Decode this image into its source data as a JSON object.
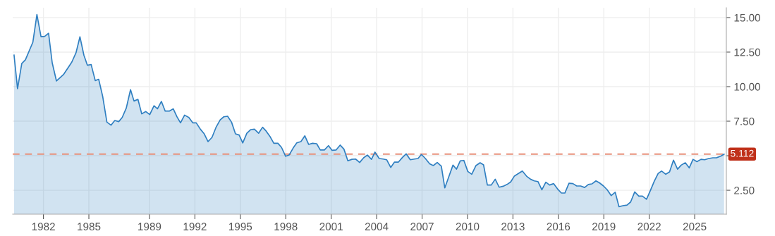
{
  "chart_data": {
    "type": "area",
    "x": [
      1980.06,
      1980.29,
      1980.57,
      1980.81,
      1981.3,
      1981.57,
      1981.84,
      1982.08,
      1982.34,
      1982.58,
      1982.86,
      1983.32,
      1983.87,
      1984.15,
      1984.41,
      1984.67,
      1984.9,
      1985.15,
      1985.42,
      1985.65,
      1985.91,
      1986.19,
      1986.46,
      1986.71,
      1986.97,
      1987.2,
      1987.47,
      1987.75,
      1987.98,
      1988.24,
      1988.49,
      1988.76,
      1989.02,
      1989.3,
      1989.53,
      1989.79,
      1990.04,
      1990.31,
      1990.57,
      1990.82,
      1991.05,
      1991.32,
      1991.6,
      1991.86,
      1992.09,
      1992.36,
      1992.6,
      1992.87,
      1993.13,
      1993.41,
      1993.67,
      1993.91,
      1994.16,
      1994.42,
      1994.68,
      1994.92,
      1995.16,
      1995.43,
      1995.69,
      1995.93,
      1996.21,
      1996.47,
      1996.7,
      1996.95,
      1997.21,
      1997.48,
      1997.72,
      1997.99,
      1998.22,
      1998.49,
      1998.73,
      1999.0,
      1999.26,
      1999.51,
      1999.77,
      2000.04,
      2000.28,
      2000.55,
      2000.82,
      2001.06,
      2001.33,
      2001.59,
      2001.84,
      2002.1,
      2002.37,
      2002.61,
      2002.88,
      2003.14,
      2003.39,
      2003.66,
      2003.89,
      2004.17,
      2004.43,
      2004.66,
      2004.93,
      2005.18,
      2005.44,
      2005.71,
      2005.95,
      2006.22,
      2006.5,
      2006.73,
      2006.96,
      2007.22,
      2007.5,
      2007.74,
      2008.0,
      2008.27,
      2008.5,
      2008.78,
      2009.04,
      2009.27,
      2009.52,
      2009.76,
      2010.02,
      2010.28,
      2010.56,
      2010.83,
      2011.06,
      2011.31,
      2011.57,
      2011.83,
      2012.09,
      2012.35,
      2012.61,
      2012.85,
      2013.09,
      2013.62,
      2013.9,
      2014.16,
      2014.41,
      2014.65,
      2014.91,
      2015.17,
      2015.42,
      2015.69,
      2015.95,
      2016.2,
      2016.43,
      2016.7,
      2016.96,
      2017.21,
      2017.47,
      2017.73,
      2017.98,
      2018.21,
      2018.48,
      2018.71,
      2018.98,
      2019.22,
      2019.49,
      2019.75,
      2020.0,
      2020.26,
      2020.53,
      2020.77,
      2021.04,
      2021.31,
      2021.55,
      2021.82,
      2022.08,
      2022.33,
      2022.59,
      2022.82,
      2023.09,
      2023.34,
      2023.6,
      2023.87,
      2024.11,
      2024.38,
      2024.64,
      2024.89,
      2025.15,
      2025.42,
      2025.66,
      2025.93,
      2026.2,
      2026.44,
      2026.71,
      2026.94
    ],
    "series": [
      {
        "color": "#2f7fc1",
        "values": [
          12.28,
          9.85,
          11.68,
          11.94,
          13.21,
          15.22,
          13.61,
          13.64,
          13.86,
          11.72,
          10.41,
          10.87,
          11.77,
          12.45,
          13.61,
          12.28,
          11.55,
          11.6,
          10.44,
          10.53,
          9.3,
          7.43,
          7.21,
          7.55,
          7.47,
          7.77,
          8.45,
          9.78,
          8.96,
          9.08,
          8.03,
          8.2,
          7.98,
          8.62,
          8.4,
          8.93,
          8.23,
          8.23,
          8.4,
          7.81,
          7.38,
          7.94,
          7.77,
          7.38,
          7.38,
          6.92,
          6.61,
          6.02,
          6.33,
          7.09,
          7.6,
          7.82,
          7.86,
          7.43,
          6.58,
          6.5,
          5.93,
          6.63,
          6.89,
          6.92,
          6.63,
          7.06,
          6.79,
          6.41,
          5.9,
          5.9,
          5.6,
          4.96,
          5.05,
          5.56,
          5.93,
          6.02,
          6.44,
          5.82,
          5.9,
          5.87,
          5.42,
          5.42,
          5.73,
          5.39,
          5.42,
          5.77,
          5.48,
          4.63,
          4.74,
          4.76,
          4.51,
          4.85,
          5.05,
          4.74,
          5.26,
          4.8,
          4.76,
          4.71,
          4.15,
          4.54,
          4.54,
          4.88,
          5.14,
          4.71,
          4.76,
          4.8,
          5.09,
          4.8,
          4.42,
          4.29,
          4.51,
          4.25,
          2.67,
          3.52,
          4.32,
          4.03,
          4.63,
          4.66,
          3.86,
          3.66,
          4.29,
          4.49,
          4.34,
          2.88,
          2.88,
          3.3,
          2.72,
          2.79,
          2.92,
          3.1,
          3.52,
          3.89,
          3.52,
          3.3,
          3.18,
          3.13,
          2.54,
          3.08,
          2.88,
          2.98,
          2.59,
          2.3,
          2.3,
          3.01,
          2.98,
          2.81,
          2.81,
          2.7,
          2.92,
          2.96,
          3.18,
          3.04,
          2.81,
          2.54,
          2.11,
          2.36,
          1.31,
          1.38,
          1.43,
          1.65,
          2.38,
          2.08,
          2.08,
          1.85,
          2.5,
          3.15,
          3.72,
          3.89,
          3.66,
          3.83,
          4.68,
          4.03,
          4.32,
          4.49,
          4.12,
          4.74,
          4.57,
          4.74,
          4.71,
          4.8,
          4.85,
          4.85,
          4.96,
          5.11
        ]
      }
    ],
    "xlim": [
      1979.97,
      2027.09
    ],
    "xticks": [
      1982,
      1985,
      1989,
      1992,
      1995,
      1998,
      2001,
      2004,
      2007,
      2010,
      2013,
      2016,
      2019,
      2022,
      2025
    ],
    "ylim": [
      0.77,
      15.71
    ],
    "yticks": [
      {
        "value": 2.5,
        "label": "2.50"
      },
      {
        "value": 5,
        "label": null
      },
      {
        "value": 7.5,
        "label": "7.50"
      },
      {
        "value": 10,
        "label": "10.00"
      },
      {
        "value": 12.5,
        "label": "12.50"
      },
      {
        "value": 15,
        "label": "15.00"
      }
    ],
    "ref_lines": [
      {
        "axis": "y",
        "value": 5.112,
        "label": "5.112",
        "color": "#e8907a",
        "line_style": "dashed"
      }
    ],
    "grid": true
  }
}
